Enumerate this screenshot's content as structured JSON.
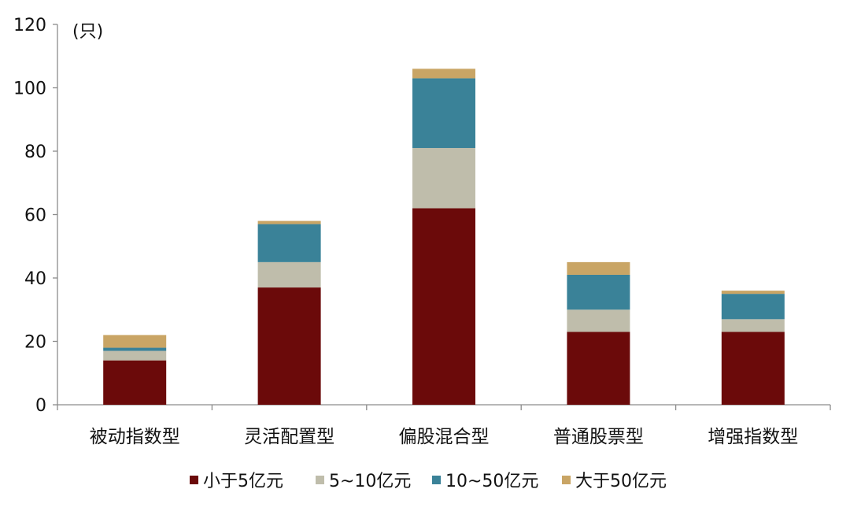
{
  "chart_data": {
    "type": "bar",
    "stacked": true,
    "unit_label": "(只)",
    "title": "",
    "xlabel": "",
    "ylabel": "",
    "categories": [
      "被动指数型",
      "灵活配置型",
      "偏股混合型",
      "普通股票型",
      "增强指数型"
    ],
    "series": [
      {
        "name": "小于5亿元",
        "color": "#6B0A0A",
        "values": [
          14,
          37,
          62,
          23,
          23
        ]
      },
      {
        "name": "5~10亿元",
        "color": "#BFBDAB",
        "values": [
          3,
          8,
          19,
          7,
          4
        ]
      },
      {
        "name": "10~50亿元",
        "color": "#3A8298",
        "values": [
          1,
          12,
          22,
          11,
          8
        ]
      },
      {
        "name": "大于50亿元",
        "color": "#C9A565",
        "values": [
          4,
          1,
          3,
          4,
          1
        ]
      }
    ],
    "ylim": [
      0,
      120
    ],
    "yticks": [
      0,
      20,
      40,
      60,
      80,
      100,
      120
    ],
    "grid": false,
    "legend_position": "bottom"
  }
}
